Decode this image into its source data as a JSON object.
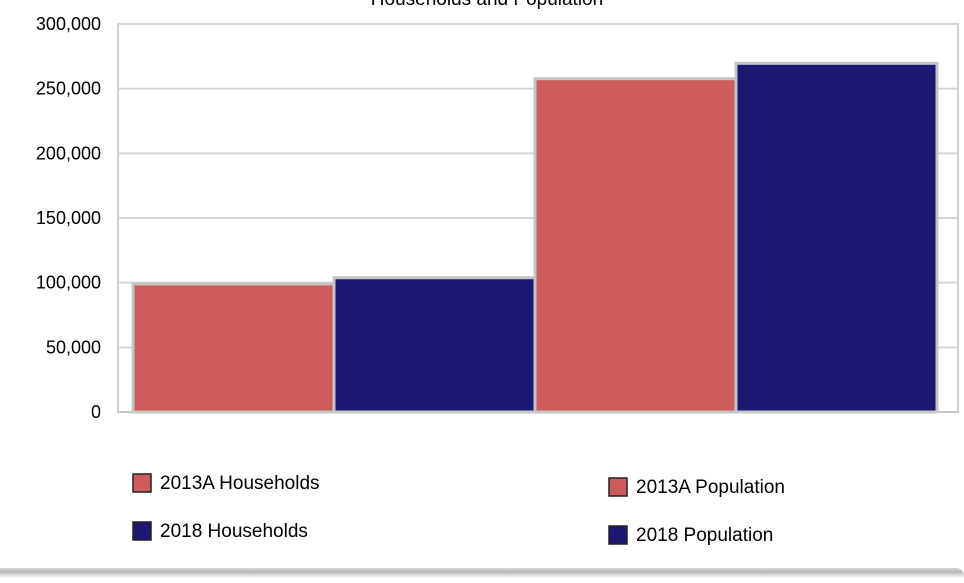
{
  "chart_data": {
    "type": "bar",
    "title": "Households and Population",
    "xlabel": "",
    "ylabel": "",
    "ylim": [
      0,
      300000
    ],
    "yticks": [
      0,
      50000,
      100000,
      150000,
      200000,
      250000,
      300000
    ],
    "ytick_labels": [
      "0",
      "50,000",
      "100,000",
      "150,000",
      "200,000",
      "250,000",
      "300,000"
    ],
    "grid": true,
    "legend_position": "bottom",
    "series": [
      {
        "name": "2013A Households",
        "value": 99000,
        "color": "#cd5c5c"
      },
      {
        "name": "2018 Households",
        "value": 103800,
        "color": "#1c1770"
      },
      {
        "name": "2013A Population",
        "value": 257700,
        "color": "#cd5c5c"
      },
      {
        "name": "2018 Population",
        "value": 269600,
        "color": "#1c1770"
      }
    ]
  }
}
